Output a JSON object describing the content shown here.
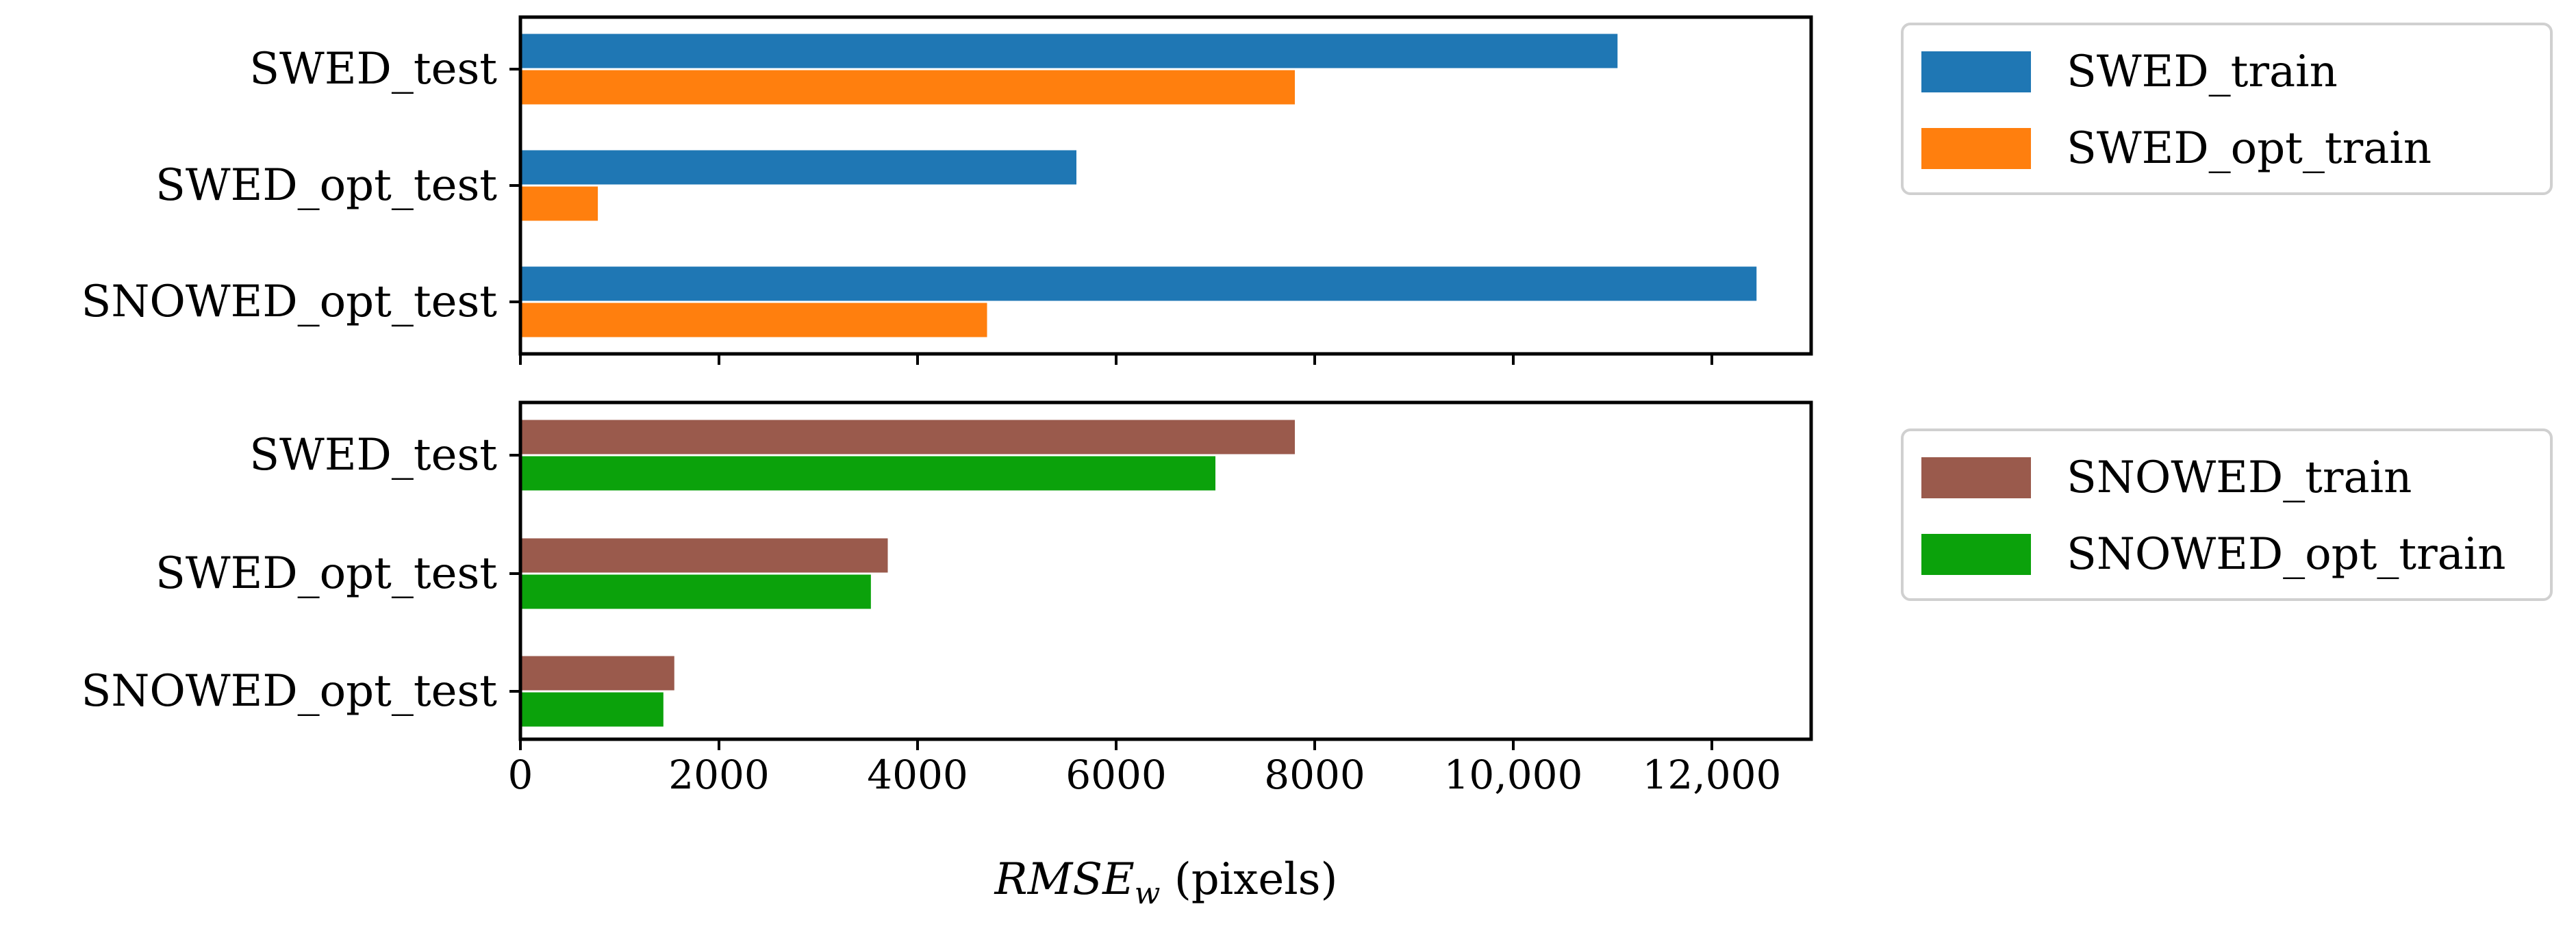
{
  "chart_data": [
    {
      "type": "bar",
      "orientation": "horizontal",
      "categories": [
        "SWED_test",
        "SWED_opt_test",
        "SNOWED_opt_test"
      ],
      "series": [
        {
          "name": "SWED_train",
          "color": "#1f77b4",
          "values": [
            11050,
            5600,
            12450
          ]
        },
        {
          "name": "SWED_opt_train",
          "color": "#ff7f0e",
          "values": [
            7800,
            780,
            4700
          ]
        }
      ],
      "xlim": [
        0,
        13000
      ],
      "legend": "right-outside"
    },
    {
      "type": "bar",
      "orientation": "horizontal",
      "categories": [
        "SWED_test",
        "SWED_opt_test",
        "SNOWED_opt_test"
      ],
      "series": [
        {
          "name": "SNOWED_train",
          "color": "#9a5a4c",
          "values": [
            7800,
            3700,
            1550
          ]
        },
        {
          "name": "SNOWED_opt_train",
          "color": "#0ba20b",
          "values": [
            7000,
            3530,
            1440
          ]
        }
      ],
      "xlim": [
        0,
        13000
      ],
      "legend": "right-outside"
    }
  ],
  "x_axis": {
    "ticks": [
      0,
      2000,
      4000,
      6000,
      8000,
      10000,
      12000
    ],
    "tick_labels": [
      "0",
      "2000",
      "4000",
      "6000",
      "8000",
      "10,000",
      "12,000"
    ],
    "xlabel_main": "RMSE",
    "xlabel_sub": "w",
    "xlabel_unit": " (pixels)"
  }
}
